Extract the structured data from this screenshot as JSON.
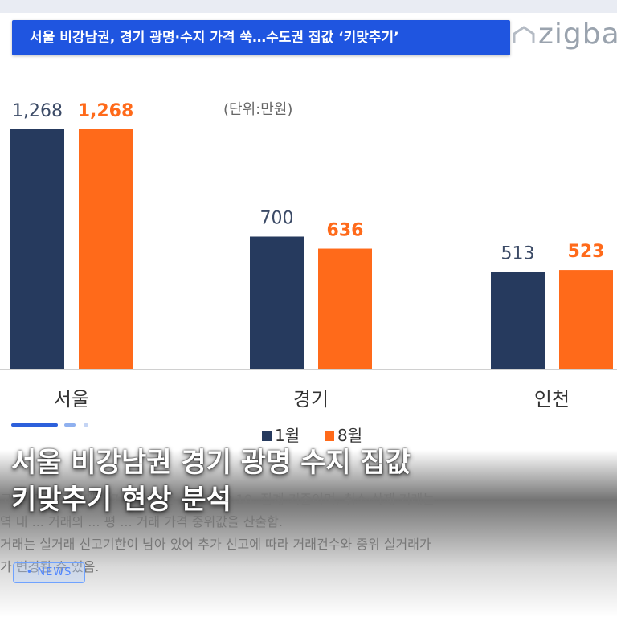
{
  "headline": "서울 비강남권, 경기 광명·수지 가격 쑥…수도권 집값 ‘키맞추기’",
  "brand": "zigbang",
  "unit_label": "(단위:만원)",
  "caption_lines": [
    "서울 비강남권 경기 광명 수지 집값",
    "키맞추기 현상 분석"
  ],
  "notes": [
    "고 ... 아파트 매매 실거래가 기준 ... 25.09.10. 집계 기준이며, 취소·삭제 거래는",
    "역 내 ... 거래의 ... 평 ... 거래 가격 중위값을 산출함.",
    "거래는 실거래 신고기한이 남아 있어 추가 신고에 따라 거래건수와 중위 실거래가",
    "가 변경될 수 있음."
  ],
  "news_label": "NEWS",
  "colors": {
    "series1": "#263a5e",
    "series2": "#ff6a1a",
    "headline_bg": "#1f55e0"
  },
  "chart_data": {
    "type": "bar",
    "categories": [
      "서울",
      "경기",
      "인천"
    ],
    "series": [
      {
        "name": "1월",
        "values": [
          1268,
          700,
          513
        ]
      },
      {
        "name": "8월",
        "values": [
          1268,
          636,
          523
        ]
      }
    ],
    "value_labels": [
      [
        "1,268",
        "700",
        "513"
      ],
      [
        "1,268",
        "636",
        "523"
      ]
    ],
    "legend": [
      "1월",
      "8월"
    ],
    "legend_position": "bottom-center",
    "grid": false
  }
}
